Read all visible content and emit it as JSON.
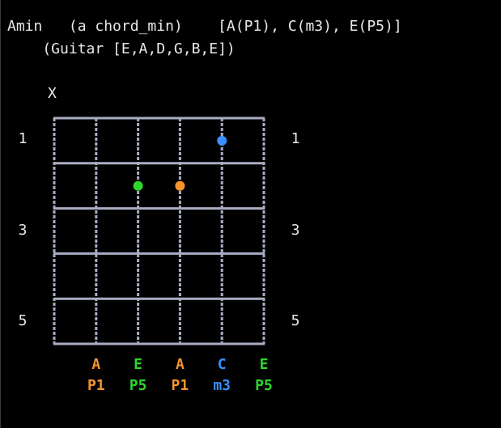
{
  "header": {
    "line1": "Amin   (a chord_min)    [A(P1), C(m3), E(P5)]",
    "line2": "    (Guitar [E,A,D,G,B,E])"
  },
  "muted_marker": "X",
  "fret_labels_left": [
    "1",
    "3",
    "5"
  ],
  "fret_labels_right": [
    "1",
    "3",
    "5"
  ],
  "colors": {
    "P1": "#f7932e",
    "m3": "#3a8fff",
    "P5": "#2ed62e",
    "grid": "#a9adc2",
    "text": "#e8e8e8"
  },
  "dots": [
    {
      "string": 4,
      "fret": 1,
      "interval": "m3"
    },
    {
      "string": 2,
      "fret": 2,
      "interval": "P5"
    },
    {
      "string": 3,
      "fret": 2,
      "interval": "P1"
    }
  ],
  "notes": [
    {
      "string": 1,
      "note": "A",
      "interval": "P1"
    },
    {
      "string": 2,
      "note": "E",
      "interval": "P5"
    },
    {
      "string": 3,
      "note": "A",
      "interval": "P1"
    },
    {
      "string": 4,
      "note": "C",
      "interval": "m3"
    },
    {
      "string": 5,
      "note": "E",
      "interval": "P5"
    }
  ]
}
